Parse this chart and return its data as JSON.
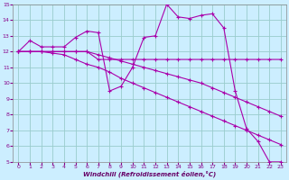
{
  "xlabel": "Windchill (Refroidissement éolien,°C)",
  "background_color": "#cceeff",
  "grid_color": "#99cccc",
  "line_color": "#aa00aa",
  "xlim": [
    -0.5,
    23.5
  ],
  "ylim": [
    5,
    15
  ],
  "xticks": [
    0,
    1,
    2,
    3,
    4,
    5,
    6,
    7,
    8,
    9,
    10,
    11,
    12,
    13,
    14,
    15,
    16,
    17,
    18,
    19,
    20,
    21,
    22,
    23
  ],
  "yticks": [
    5,
    6,
    7,
    8,
    9,
    10,
    11,
    12,
    13,
    14,
    15
  ],
  "line1_x": [
    0,
    1,
    2,
    3,
    4,
    5,
    6,
    7,
    8,
    9,
    10,
    11,
    12,
    13,
    14,
    15,
    16,
    17,
    18,
    19,
    20,
    21,
    22,
    23
  ],
  "line1_y": [
    12.0,
    12.7,
    12.3,
    12.3,
    12.3,
    12.9,
    13.3,
    13.2,
    9.5,
    9.8,
    11.0,
    12.9,
    13.0,
    15.0,
    14.2,
    14.1,
    14.3,
    14.4,
    13.5,
    9.5,
    7.1,
    6.3,
    5.0,
    5.0
  ],
  "line2_x": [
    0,
    1,
    2,
    3,
    4,
    5,
    6,
    7,
    8,
    9,
    10,
    11,
    12,
    13,
    14,
    15,
    16,
    17,
    18,
    19,
    20,
    21,
    22,
    23
  ],
  "line2_y": [
    12.0,
    12.0,
    12.0,
    12.0,
    12.0,
    12.0,
    12.0,
    11.5,
    11.5,
    11.5,
    11.5,
    11.5,
    11.5,
    11.5,
    11.5,
    11.5,
    11.5,
    11.5,
    11.5,
    11.5,
    11.5,
    11.5,
    11.5,
    11.5
  ],
  "line3_x": [
    0,
    1,
    2,
    3,
    4,
    5,
    6,
    7,
    8,
    9,
    10,
    11,
    12,
    13,
    14,
    15,
    16,
    17,
    18,
    19,
    20,
    21,
    22,
    23
  ],
  "line3_y": [
    12.0,
    12.0,
    12.0,
    11.9,
    11.8,
    11.5,
    11.2,
    11.0,
    10.7,
    10.3,
    10.0,
    9.7,
    9.4,
    9.1,
    8.8,
    8.5,
    8.2,
    7.9,
    7.6,
    7.3,
    7.0,
    6.7,
    6.4,
    6.1
  ],
  "line4_x": [
    0,
    1,
    2,
    3,
    4,
    5,
    6,
    7,
    8,
    9,
    10,
    11,
    12,
    13,
    14,
    15,
    16,
    17,
    18,
    19,
    20,
    21,
    22,
    23
  ],
  "line4_y": [
    12.0,
    12.0,
    12.0,
    12.0,
    12.0,
    12.0,
    12.0,
    11.8,
    11.6,
    11.4,
    11.2,
    11.0,
    10.8,
    10.6,
    10.4,
    10.2,
    10.0,
    9.7,
    9.4,
    9.1,
    8.8,
    8.5,
    8.2,
    7.9
  ]
}
